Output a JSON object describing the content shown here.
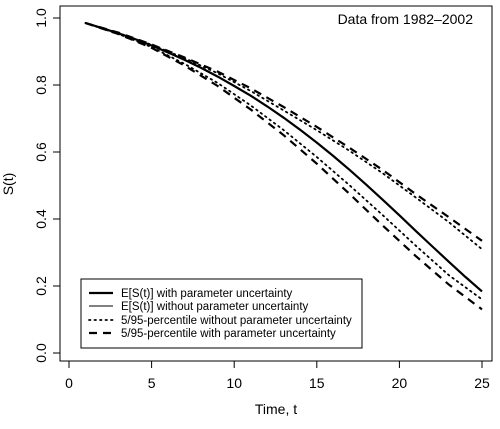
{
  "chart_data": {
    "type": "line",
    "title": "",
    "annotation": "Data from 1982–2002",
    "xlabel": "Time, t",
    "ylabel": "S(t)",
    "xlim": [
      0,
      25
    ],
    "ylim": [
      0.0,
      1.0
    ],
    "xticks": [
      0,
      5,
      10,
      15,
      20,
      25
    ],
    "xtick_labels": [
      "0",
      "5",
      "10",
      "15",
      "20",
      "25"
    ],
    "yticks": [
      0.0,
      0.2,
      0.4,
      0.6,
      0.8,
      1.0
    ],
    "ytick_labels": [
      "0.0",
      "0.2",
      "0.4",
      "0.6",
      "0.8",
      "1.0"
    ],
    "grid": false,
    "legend_position": "bottom-left",
    "series": [
      {
        "name": "E[S(t)] with parameter uncertainty",
        "style": "solid-thick",
        "x": [
          1,
          2,
          3,
          4,
          5,
          6,
          7,
          8,
          9,
          10,
          11,
          12,
          13,
          14,
          15,
          16,
          17,
          18,
          19,
          20,
          21,
          22,
          23,
          24,
          25
        ],
        "y": [
          0.985,
          0.97,
          0.954,
          0.937,
          0.918,
          0.897,
          0.875,
          0.851,
          0.825,
          0.797,
          0.768,
          0.736,
          0.702,
          0.666,
          0.628,
          0.588,
          0.546,
          0.502,
          0.457,
          0.411,
          0.364,
          0.318,
          0.272,
          0.227,
          0.184
        ]
      },
      {
        "name": "E[S(t)] without parameter uncertainty",
        "style": "solid-thin",
        "x": [
          1,
          2,
          3,
          4,
          5,
          6,
          7,
          8,
          9,
          10,
          11,
          12,
          13,
          14,
          15,
          16,
          17,
          18,
          19,
          20,
          21,
          22,
          23,
          24,
          25
        ],
        "y": [
          0.985,
          0.97,
          0.954,
          0.937,
          0.918,
          0.897,
          0.875,
          0.851,
          0.825,
          0.797,
          0.768,
          0.736,
          0.702,
          0.666,
          0.628,
          0.588,
          0.546,
          0.502,
          0.457,
          0.411,
          0.364,
          0.318,
          0.272,
          0.227,
          0.184
        ]
      },
      {
        "name": "5/95-percentile without parameter uncertainty",
        "style": "dotted",
        "lower": {
          "x": [
            1,
            3,
            5,
            7,
            9,
            11,
            13,
            15,
            17,
            19,
            21,
            23,
            25
          ],
          "y": [
            0.985,
            0.952,
            0.913,
            0.863,
            0.806,
            0.739,
            0.665,
            0.585,
            0.5,
            0.411,
            0.32,
            0.232,
            0.16
          ]
        },
        "upper": {
          "x": [
            1,
            3,
            5,
            7,
            9,
            11,
            13,
            15,
            17,
            19,
            21,
            23,
            25
          ],
          "y": [
            0.985,
            0.955,
            0.92,
            0.88,
            0.835,
            0.782,
            0.724,
            0.665,
            0.603,
            0.536,
            0.464,
            0.39,
            0.31
          ]
        }
      },
      {
        "name": "5/95-percentile with parameter uncertainty",
        "style": "dashed",
        "lower": {
          "x": [
            1,
            3,
            5,
            7,
            9,
            11,
            13,
            15,
            17,
            19,
            21,
            23,
            25
          ],
          "y": [
            0.985,
            0.952,
            0.911,
            0.858,
            0.797,
            0.727,
            0.65,
            0.565,
            0.474,
            0.38,
            0.289,
            0.204,
            0.13
          ]
        },
        "upper": {
          "x": [
            1,
            3,
            5,
            7,
            9,
            11,
            13,
            15,
            17,
            19,
            21,
            23,
            25
          ],
          "y": [
            0.985,
            0.956,
            0.921,
            0.882,
            0.84,
            0.79,
            0.734,
            0.675,
            0.612,
            0.546,
            0.474,
            0.405,
            0.335
          ]
        }
      }
    ]
  }
}
